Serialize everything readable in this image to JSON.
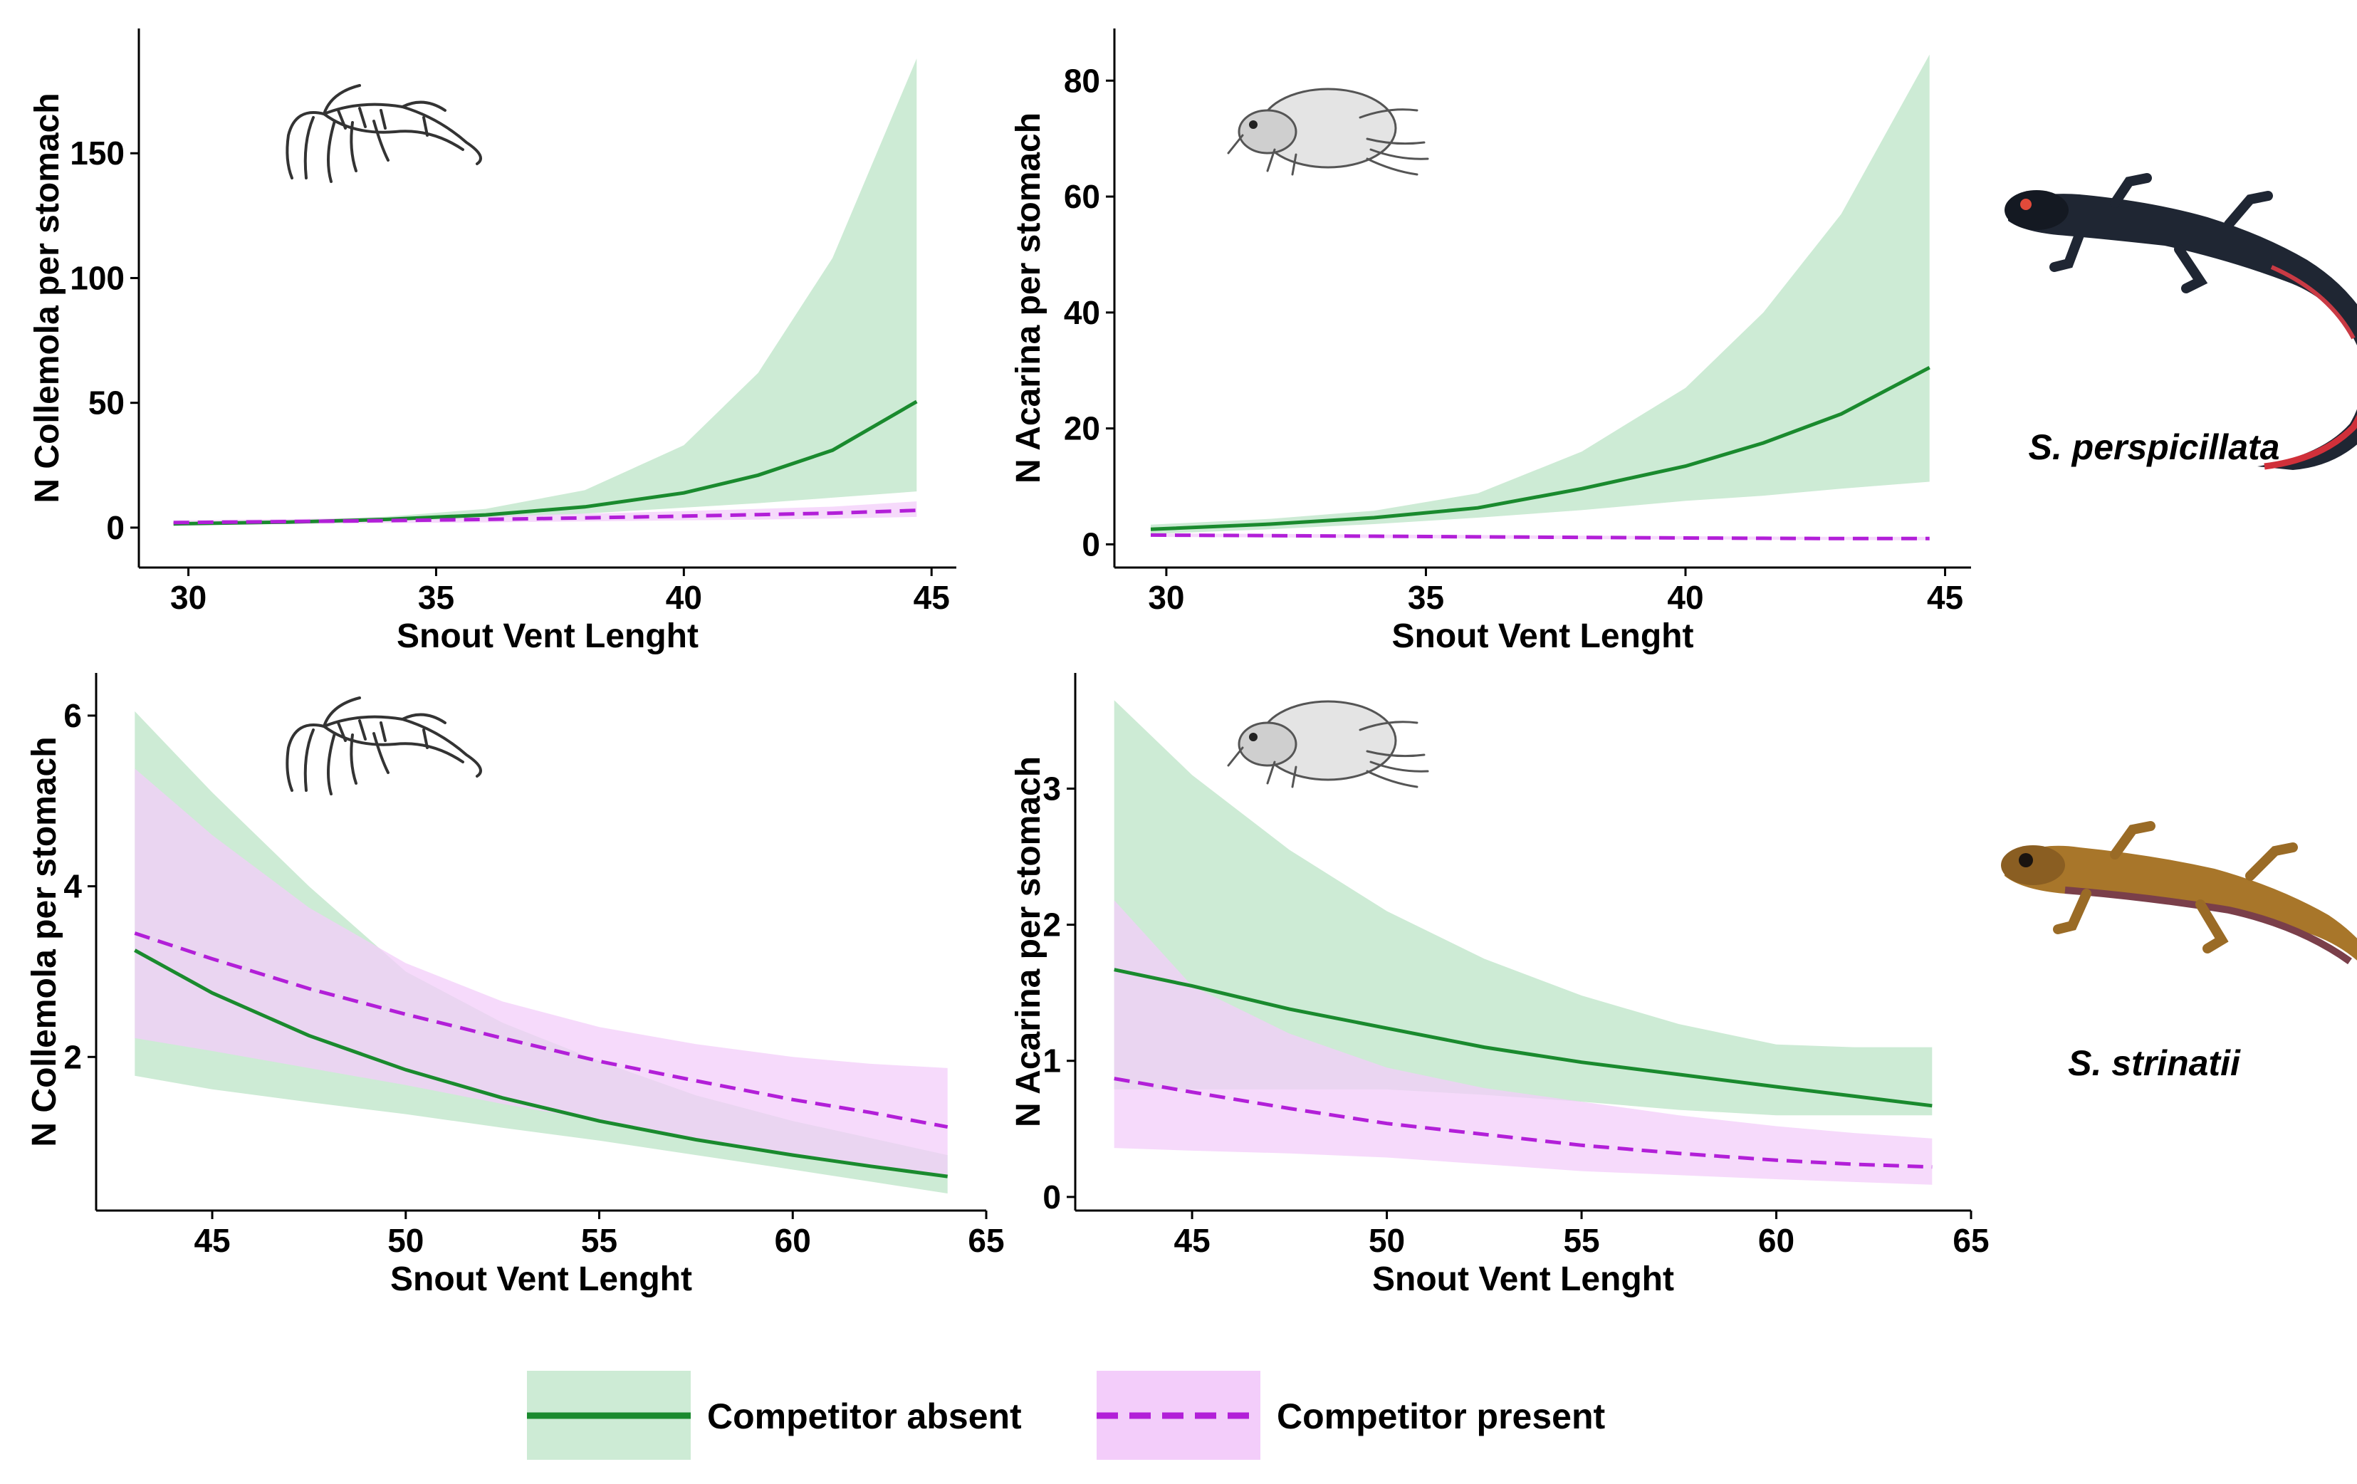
{
  "colors": {
    "absent_line": "#1a8a2e",
    "absent_band": "#cdebd5",
    "present_line": "#b21fd8",
    "present_band": "#f3cdfa"
  },
  "species": [
    {
      "name": "S. perspicillata",
      "icon": "dark-salamander-icon"
    },
    {
      "name": "S. strinatii",
      "icon": "brown-salamander-icon"
    }
  ],
  "legend": {
    "absent": "Competitor absent",
    "present": "Competitor present"
  },
  "chart_data": [
    {
      "type": "line",
      "panel": "top-left",
      "icon": "springtail-icon",
      "xlabel": "Snout Vent Lenght",
      "ylabel": "N Collemola per stomach",
      "xlim": [
        29,
        45.5
      ],
      "ylim": [
        -16,
        200
      ],
      "xticks": [
        30,
        35,
        40,
        45
      ],
      "yticks": [
        0,
        50,
        100,
        150
      ],
      "x": [
        29.7,
        32,
        34,
        36,
        38,
        40,
        41.5,
        43,
        44.7
      ],
      "series": [
        {
          "name": "Competitor absent",
          "values": [
            1.5,
            2.2,
            3.3,
            5.1,
            8.3,
            13.9,
            21,
            31,
            50.5
          ],
          "lower": [
            1.1,
            1.7,
            2.6,
            3.8,
            5.6,
            8,
            9.8,
            12,
            14.5
          ],
          "upper": [
            2.1,
            2.9,
            4.4,
            7.5,
            15,
            33,
            62,
            108,
            188
          ]
        },
        {
          "name": "Competitor present",
          "values": [
            2,
            2.4,
            2.8,
            3.3,
            3.9,
            4.6,
            5.2,
            5.8,
            6.9
          ],
          "lower": [
            1.2,
            1.5,
            1.8,
            2.1,
            2.5,
            2.9,
            3.2,
            3.6,
            4.3
          ],
          "upper": [
            2.9,
            3.4,
            4,
            4.7,
            5.6,
            6.6,
            7.5,
            8.4,
            10.5
          ]
        }
      ]
    },
    {
      "type": "line",
      "panel": "top-right",
      "icon": "mite-icon",
      "xlabel": "Snout Vent Lenght",
      "ylabel": "N Acarina per stomach",
      "xlim": [
        29,
        45.5
      ],
      "ylim": [
        -4,
        89
      ],
      "xticks": [
        30,
        35,
        40,
        45
      ],
      "yticks": [
        0,
        20,
        40,
        60,
        80
      ],
      "x": [
        29.7,
        32,
        34,
        36,
        38,
        40,
        41.5,
        43,
        44.7
      ],
      "series": [
        {
          "name": "Competitor absent",
          "values": [
            2.6,
            3.5,
            4.6,
            6.3,
            9.6,
            13.5,
            17.5,
            22.5,
            30.5
          ],
          "lower": [
            1.8,
            2.6,
            3.5,
            4.6,
            5.9,
            7.5,
            8.4,
            9.6,
            10.8
          ],
          "upper": [
            3.4,
            4.4,
            5.8,
            8.8,
            16,
            27,
            40,
            57,
            84.5
          ]
        },
        {
          "name": "Competitor present",
          "values": [
            1.6,
            1.5,
            1.4,
            1.3,
            1.2,
            1.1,
            1.05,
            1,
            1
          ],
          "lower": [
            1.3,
            1.2,
            1.1,
            1,
            0.9,
            0.85,
            0.8,
            0.75,
            0.7
          ],
          "upper": [
            1.9,
            1.8,
            1.7,
            1.6,
            1.5,
            1.4,
            1.35,
            1.3,
            1.3
          ]
        }
      ]
    },
    {
      "type": "line",
      "panel": "bottom-left",
      "icon": "springtail-icon",
      "xlabel": "Snout Vent Lenght",
      "ylabel": "N Collemola per stomach",
      "xlim": [
        42,
        65
      ],
      "ylim": [
        0.2,
        6.5
      ],
      "xticks": [
        45,
        50,
        55,
        60,
        65
      ],
      "yticks": [
        2,
        4,
        6
      ],
      "x": [
        43,
        45,
        47.5,
        50,
        52.5,
        55,
        57.5,
        60,
        62,
        64
      ],
      "series": [
        {
          "name": "Competitor absent",
          "values": [
            3.25,
            2.75,
            2.25,
            1.85,
            1.52,
            1.25,
            1.03,
            0.85,
            0.72,
            0.6
          ],
          "lower": [
            1.78,
            1.62,
            1.47,
            1.33,
            1.17,
            1.02,
            0.85,
            0.68,
            0.54,
            0.4
          ],
          "upper": [
            6.05,
            5.1,
            4.0,
            3.0,
            2.4,
            1.95,
            1.55,
            1.25,
            1.05,
            0.85
          ]
        },
        {
          "name": "Competitor present",
          "values": [
            3.45,
            3.15,
            2.8,
            2.5,
            2.22,
            1.95,
            1.72,
            1.5,
            1.35,
            1.18
          ],
          "lower": [
            2.22,
            2.07,
            1.87,
            1.67,
            1.45,
            1.25,
            1.05,
            0.85,
            0.73,
            0.62
          ],
          "upper": [
            5.38,
            4.6,
            3.75,
            3.1,
            2.65,
            2.35,
            2.15,
            2.0,
            1.92,
            1.87
          ]
        }
      ]
    },
    {
      "type": "line",
      "panel": "bottom-right",
      "icon": "mite-icon",
      "xlabel": "Snout Vent Lenght",
      "ylabel": "N Acarina per stomach",
      "xlim": [
        42,
        65
      ],
      "ylim": [
        -0.1,
        3.85
      ],
      "xticks": [
        45,
        50,
        55,
        60,
        65
      ],
      "yticks": [
        0,
        1,
        2,
        3
      ],
      "x": [
        43,
        45,
        47.5,
        50,
        52.5,
        55,
        57.5,
        60,
        62,
        64
      ],
      "series": [
        {
          "name": "Competitor absent",
          "values": [
            1.67,
            1.55,
            1.38,
            1.24,
            1.1,
            0.99,
            0.9,
            0.81,
            0.74,
            0.67
          ],
          "lower": [
            0.79,
            0.79,
            0.79,
            0.79,
            0.75,
            0.7,
            0.64,
            0.6,
            0.6,
            0.6
          ],
          "upper": [
            3.65,
            3.1,
            2.55,
            2.1,
            1.75,
            1.48,
            1.27,
            1.12,
            1.1,
            1.1
          ]
        },
        {
          "name": "Competitor present",
          "values": [
            0.87,
            0.77,
            0.65,
            0.54,
            0.46,
            0.38,
            0.32,
            0.27,
            0.24,
            0.22
          ],
          "lower": [
            0.36,
            0.34,
            0.32,
            0.29,
            0.24,
            0.19,
            0.16,
            0.13,
            0.11,
            0.09
          ],
          "upper": [
            2.18,
            1.55,
            1.2,
            0.95,
            0.8,
            0.7,
            0.6,
            0.52,
            0.47,
            0.43
          ]
        }
      ]
    }
  ]
}
